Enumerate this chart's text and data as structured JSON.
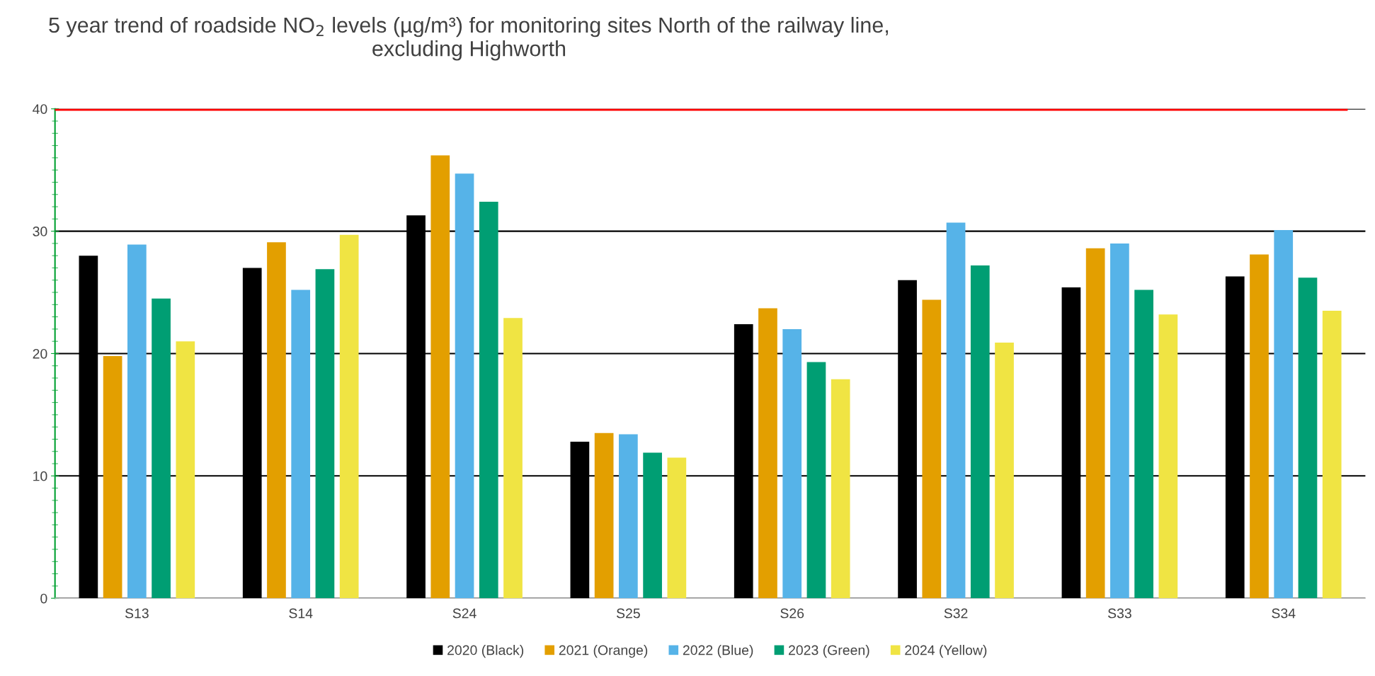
{
  "chart_data": {
    "type": "bar",
    "title": "5 year trend of roadside NO$_{2}$ levels (µg/m³) for monitoring sites North of the railway line,\nexcluding Highworth",
    "categories": [
      "S13",
      "S14",
      "S24",
      "S25",
      "S26",
      "S32",
      "S33",
      "S34"
    ],
    "series": [
      {
        "name": "2020 (Black)",
        "color": "#000000",
        "values": [
          28.0,
          27.0,
          31.3,
          12.8,
          22.4,
          26.0,
          25.4,
          26.3
        ]
      },
      {
        "name": "2021 (Orange)",
        "color": "#e39f00",
        "values": [
          19.8,
          29.1,
          36.2,
          13.5,
          23.7,
          24.4,
          28.6,
          28.1
        ]
      },
      {
        "name": "2022 (Blue)",
        "color": "#56b3e8",
        "values": [
          28.9,
          25.2,
          34.7,
          13.4,
          22.0,
          30.7,
          29.0,
          30.1
        ]
      },
      {
        "name": "2023 (Green)",
        "color": "#009e73",
        "values": [
          24.5,
          26.9,
          32.4,
          11.9,
          19.3,
          27.2,
          25.2,
          26.2
        ]
      },
      {
        "name": "2024 (Yellow)",
        "color": "#f0e443",
        "values": [
          21.0,
          29.7,
          22.9,
          11.5,
          17.9,
          20.9,
          23.2,
          23.5
        ]
      }
    ],
    "ylim": [
      0,
      40
    ],
    "yticks": [
      0,
      10,
      20,
      30,
      40
    ],
    "ref_lines": [
      {
        "axis": "y",
        "value": 40,
        "color": "#ff0000"
      }
    ],
    "grid": "y",
    "legend": "bottom"
  }
}
